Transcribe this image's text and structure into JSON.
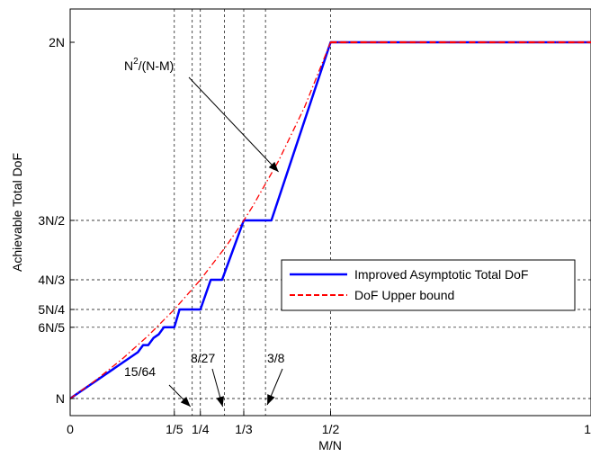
{
  "chart_data": {
    "type": "line",
    "xlabel": "M/N",
    "ylabel": "Achievable Total DoF",
    "xlim": [
      0,
      1
    ],
    "ylim": [
      "N",
      "2N"
    ],
    "x_ticks": [
      {
        "label": "0",
        "value": 0
      },
      {
        "label": "1/5",
        "value": 0.2
      },
      {
        "label": "1/4",
        "value": 0.25
      },
      {
        "label": "1/3",
        "value": 0.3333
      },
      {
        "label": "1/2",
        "value": 0.5
      },
      {
        "label": "1",
        "value": 1
      }
    ],
    "y_ticks": [
      {
        "label": "N",
        "value": 1.0
      },
      {
        "label": "6N/5",
        "value": 1.2
      },
      {
        "label": "5N/4",
        "value": 1.25
      },
      {
        "label": "4N/3",
        "value": 1.3333
      },
      {
        "label": "3N/2",
        "value": 1.5
      },
      {
        "label": "2N",
        "value": 2.0
      }
    ],
    "grid": "dashed reference lines at marked ticks",
    "legend_position": "center-right",
    "series": [
      {
        "name": "Improved Asymptotic Total DoF",
        "color": "#0000ff",
        "style": "solid",
        "x": [
          0,
          0.05,
          0.1,
          0.13,
          0.14,
          0.15,
          0.16,
          0.17,
          0.18,
          0.2,
          0.21,
          0.23,
          0.25,
          0.27,
          0.2917,
          0.3333,
          0.36,
          0.3864,
          0.5,
          0.6,
          0.7,
          0.8,
          0.9,
          1.0
        ],
        "y": [
          1.0,
          1.05,
          1.1,
          1.13,
          1.15,
          1.15,
          1.17,
          1.18,
          1.2,
          1.2,
          1.25,
          1.25,
          1.25,
          1.3333,
          1.3333,
          1.5,
          1.5,
          1.5,
          2.0,
          2.0,
          2.0,
          2.0,
          2.0,
          2.0
        ]
      },
      {
        "name": "DoF Upper bound",
        "color": "#ff0000",
        "style": "dashed",
        "x": [
          0,
          0.05,
          0.1,
          0.15,
          0.2,
          0.25,
          0.3,
          0.3333,
          0.35,
          0.4,
          0.45,
          0.5,
          0.6,
          0.7,
          0.8,
          0.9,
          1.0
        ],
        "y": [
          1.0,
          1.0526,
          1.1111,
          1.1765,
          1.25,
          1.3333,
          1.4286,
          1.5,
          1.5385,
          1.6667,
          1.8182,
          2.0,
          2.0,
          2.0,
          2.0,
          2.0,
          2.0
        ]
      }
    ],
    "extra_vlines": [
      0.2344,
      0.2963,
      0.375
    ],
    "annotations": [
      {
        "text": "N²/(N-M)",
        "text_main": "N",
        "text_sup": "2",
        "text_rest": "/(N-M)",
        "target_x": 0.4,
        "target_y": 1.6667
      },
      {
        "text": "15/64",
        "target_x": 0.2344
      },
      {
        "text": "8/27",
        "target_x": 0.2963
      },
      {
        "text": "3/8",
        "target_x": 0.375
      }
    ]
  }
}
